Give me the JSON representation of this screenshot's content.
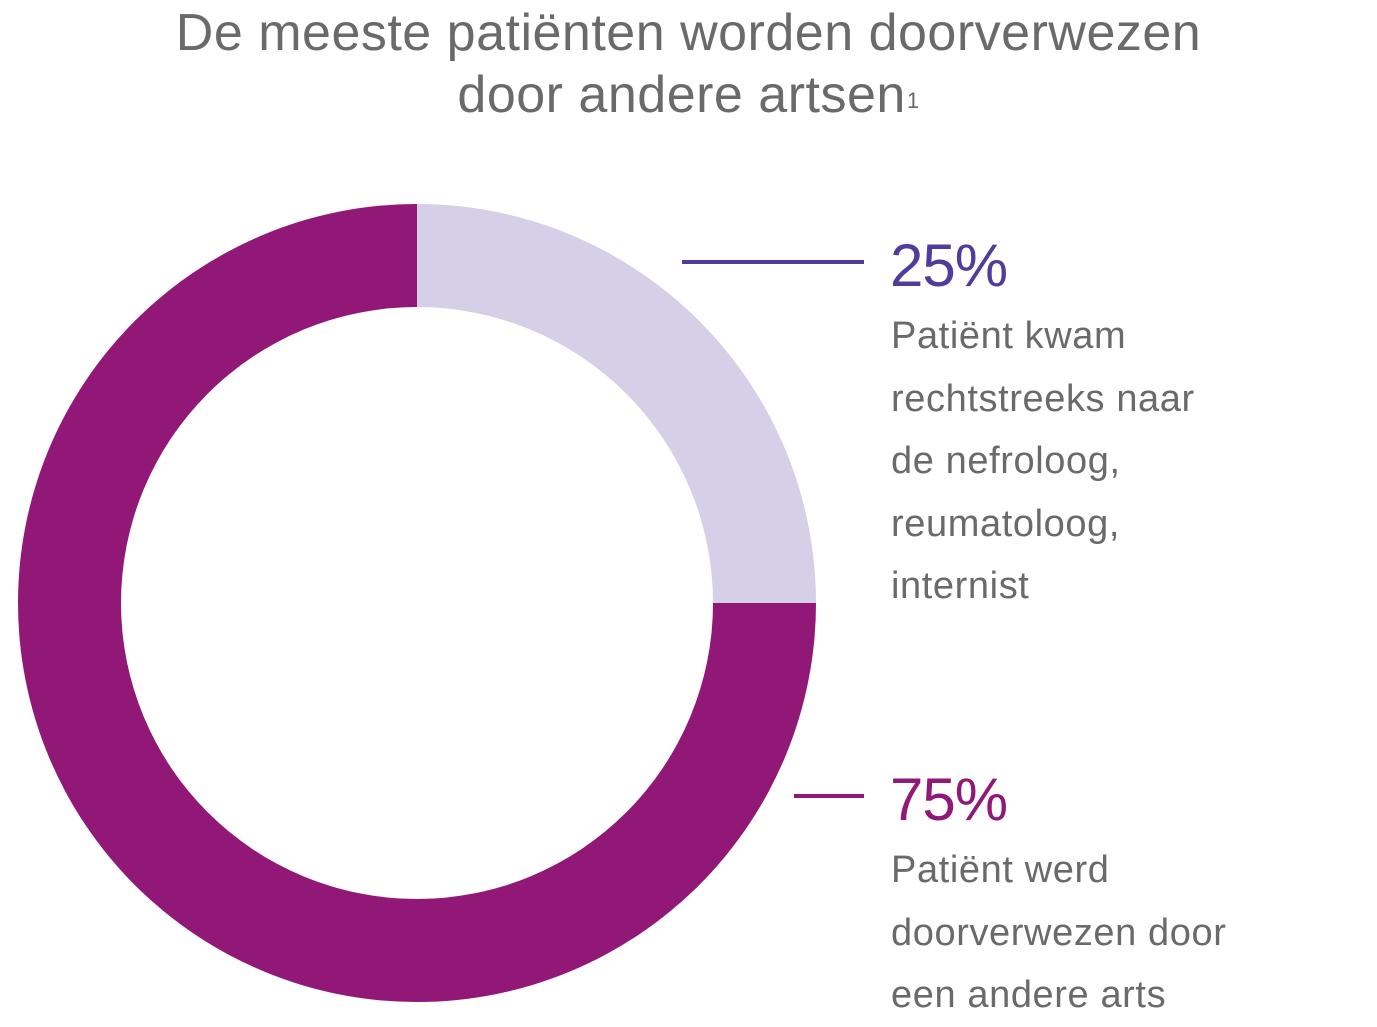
{
  "title": {
    "line1": "De meeste patiënten worden doorverwezen",
    "line2": "door andere artsen",
    "footnote": "1"
  },
  "colors": {
    "direct": "#d5cfe7",
    "referred": "#911876",
    "direct_label": "#4f3c9b",
    "referred_label": "#911876",
    "text": "#6a6a6a"
  },
  "chart_data": {
    "type": "pie",
    "variant": "donut",
    "slices": [
      {
        "value": 25,
        "value_label": "25%",
        "label_lines": [
          "Patiënt kwam",
          "rechtstreeks naar",
          "de nefroloog,",
          "reumatoloog,",
          "internist"
        ],
        "color": "#d5cfe7"
      },
      {
        "value": 75,
        "value_label": "75%",
        "label_lines": [
          "Patiënt werd",
          "doorverwezen door",
          "een andere arts"
        ],
        "color": "#911876"
      }
    ]
  }
}
